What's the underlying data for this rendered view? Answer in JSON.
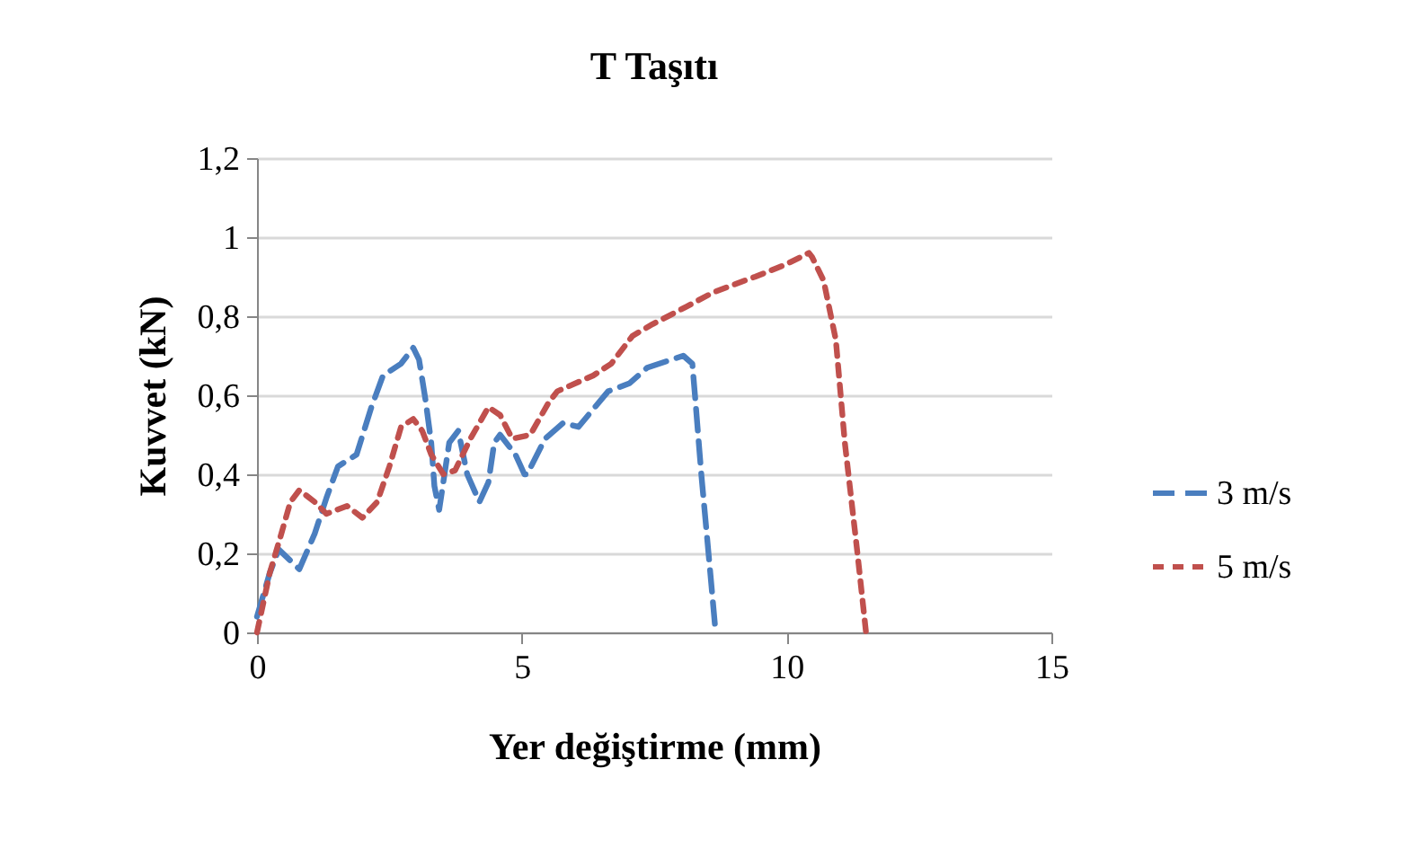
{
  "chart_data": {
    "type": "line",
    "title": "T Taşıtı",
    "xlabel": "Yer değiştirme (mm)",
    "ylabel": "Kuvvet (kN)",
    "xlim": [
      0,
      15
    ],
    "xticks": [
      0,
      5,
      10,
      15
    ],
    "ylim": [
      0,
      1.2
    ],
    "yticks": [
      0,
      {
        "value": 0.2,
        "label": "0,2"
      },
      {
        "value": 0.4,
        "label": "0,4"
      },
      {
        "value": 0.6,
        "label": "0,6"
      },
      {
        "value": 0.8,
        "label": "0,8"
      },
      1,
      {
        "value": 1.2,
        "label": "1,2"
      }
    ],
    "grid": "y",
    "legend": "right",
    "line_style": "dashed",
    "marker": "none",
    "series": [
      {
        "name": "3 m/s",
        "color": "#4a7ebf",
        "x": [
          0,
          0.24,
          0.41,
          0.8,
          1.09,
          1.31,
          1.53,
          1.88,
          2.16,
          2.38,
          2.72,
          2.95,
          3.06,
          3.18,
          3.29,
          3.35,
          3.44,
          3.63,
          3.8,
          3.97,
          4.2,
          4.37,
          4.48,
          4.59,
          4.88,
          5.05,
          5.1,
          5.44,
          5.78,
          6.07,
          6.63,
          7.03,
          7.37,
          8.05,
          8.22,
          8.27,
          8.39,
          8.56,
          8.66
        ],
        "values": [
          0.04,
          0.15,
          0.21,
          0.16,
          0.25,
          0.34,
          0.42,
          0.45,
          0.57,
          0.65,
          0.68,
          0.72,
          0.69,
          0.59,
          0.48,
          0.37,
          0.31,
          0.48,
          0.51,
          0.4,
          0.33,
          0.38,
          0.48,
          0.5,
          0.45,
          0.4,
          0.4,
          0.49,
          0.53,
          0.52,
          0.61,
          0.63,
          0.67,
          0.7,
          0.68,
          0.6,
          0.4,
          0.15,
          0
        ]
      },
      {
        "name": "5 m/s",
        "color": "#c0504d",
        "x": [
          0,
          0.24,
          0.46,
          0.63,
          0.8,
          1.09,
          1.31,
          1.7,
          1.99,
          2.27,
          2.5,
          2.72,
          2.95,
          3.12,
          3.29,
          3.52,
          3.74,
          4.03,
          4.37,
          4.59,
          4.82,
          5.16,
          5.5,
          5.67,
          6.35,
          6.69,
          7.09,
          7.47,
          8.05,
          8.61,
          9.41,
          9.97,
          10.42,
          10.48,
          10.7,
          10.93,
          11.1,
          11.33,
          11.5
        ],
        "values": [
          0,
          0.15,
          0.25,
          0.33,
          0.36,
          0.33,
          0.3,
          0.32,
          0.29,
          0.33,
          0.42,
          0.52,
          0.54,
          0.51,
          0.45,
          0.4,
          0.41,
          0.49,
          0.57,
          0.55,
          0.49,
          0.5,
          0.58,
          0.61,
          0.65,
          0.68,
          0.75,
          0.78,
          0.82,
          0.86,
          0.9,
          0.93,
          0.96,
          0.95,
          0.89,
          0.74,
          0.48,
          0.21,
          0
        ]
      }
    ]
  }
}
